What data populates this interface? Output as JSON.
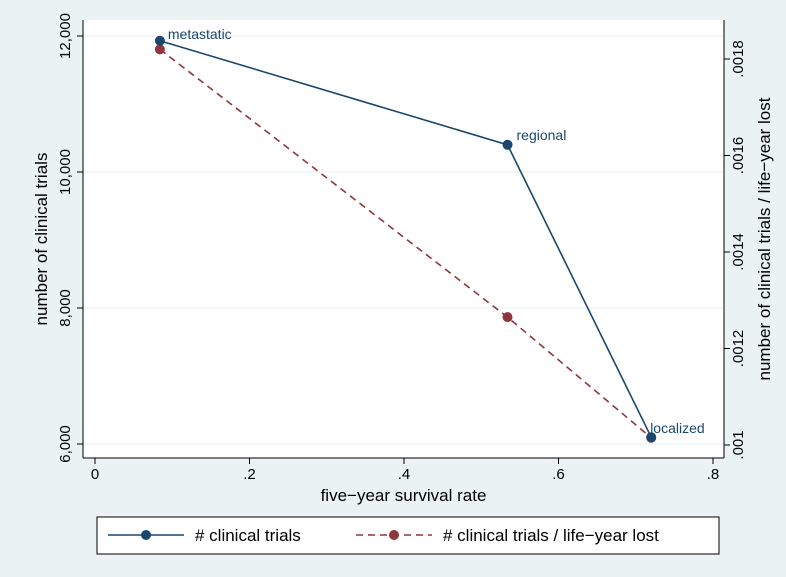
{
  "chart_data": {
    "type": "line",
    "title": "",
    "xlabel": "five−year survival rate",
    "ylabel_left": "number of clinical trials",
    "ylabel_right": "number of clinical trials / life−year lost",
    "xlim": [
      0,
      0.8
    ],
    "ylim_left": [
      6000,
      12000
    ],
    "ylim_right": [
      0.001,
      0.00182
    ],
    "x_ticks": [
      {
        "value": 0,
        "label": "0"
      },
      {
        "value": 0.2,
        "label": ".2"
      },
      {
        "value": 0.4,
        "label": ".4"
      },
      {
        "value": 0.6,
        "label": ".6"
      },
      {
        "value": 0.8,
        "label": ".8"
      }
    ],
    "y_left_ticks": [
      {
        "value": 6000,
        "label": "6,000"
      },
      {
        "value": 8000,
        "label": "8,000"
      },
      {
        "value": 10000,
        "label": "10,000"
      },
      {
        "value": 12000,
        "label": "12,000"
      }
    ],
    "y_right_ticks": [
      {
        "value": 0.001,
        "label": ".001"
      },
      {
        "value": 0.0012,
        "label": ".0012"
      },
      {
        "value": 0.0014,
        "label": ".0014"
      },
      {
        "value": 0.0016,
        "label": ".0016"
      },
      {
        "value": 0.0018,
        "label": ".0018"
      }
    ],
    "grid": true,
    "legend_position": "bottom",
    "series": [
      {
        "name": "# clinical trials",
        "axis": "left",
        "color": "#1a476f",
        "style": "solid",
        "x": [
          0.084,
          0.534,
          0.72
        ],
        "y": [
          11930,
          10400,
          6100
        ],
        "point_labels": [
          "metastatic",
          "regional",
          "localized"
        ]
      },
      {
        "name": "# clinical trials / life−year lost",
        "axis": "right",
        "color": "#90353b",
        "style": "dashed",
        "x": [
          0.084,
          0.534,
          0.72
        ],
        "y": [
          0.00182,
          0.001265,
          0.001015
        ]
      }
    ]
  }
}
